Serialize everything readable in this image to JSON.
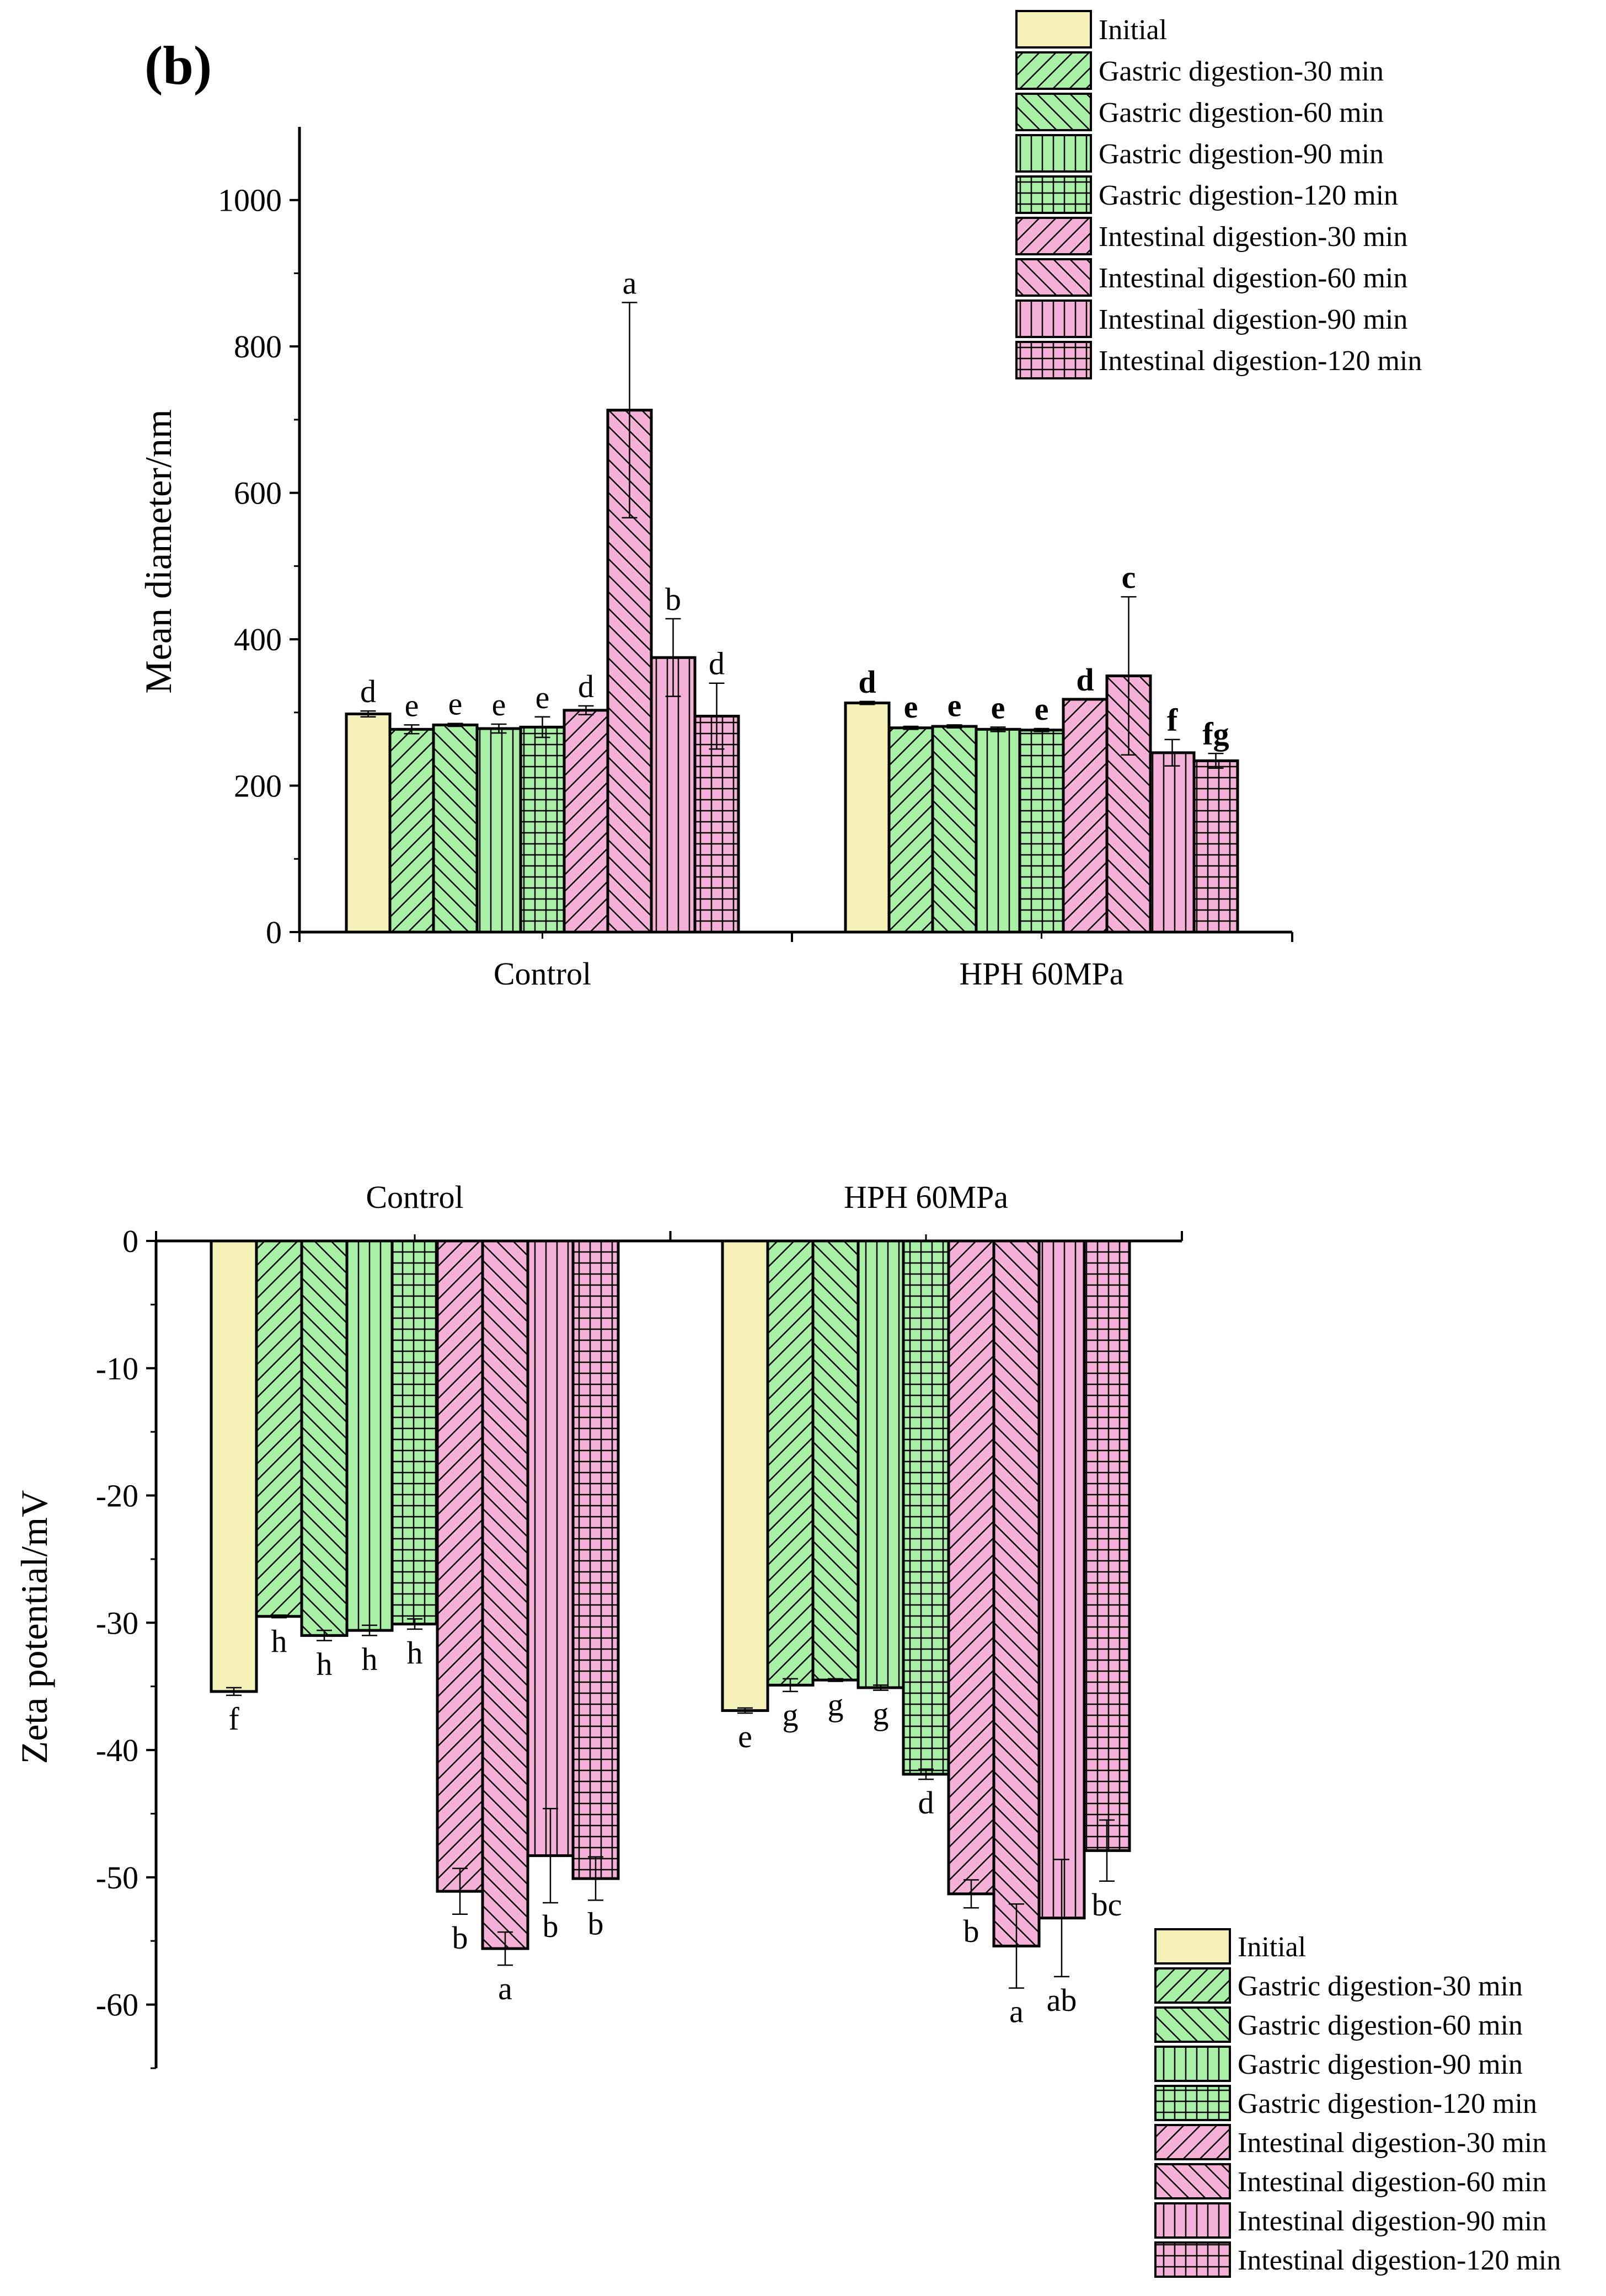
{
  "panel_label": "(b)",
  "colors": {
    "initial": "#f5f0b8",
    "gastric": "#a8f0a6",
    "intestinal": "#f5b0d8",
    "edge": "#000000"
  },
  "legend": {
    "items": [
      {
        "label": "Initial",
        "pattern": "none",
        "group": "initial"
      },
      {
        "label": "Gastric digestion-30 min",
        "pattern": "fdiag",
        "group": "gastric"
      },
      {
        "label": "Gastric digestion-60 min",
        "pattern": "bdiag",
        "group": "gastric"
      },
      {
        "label": "Gastric digestion-90 min",
        "pattern": "vert",
        "group": "gastric"
      },
      {
        "label": "Gastric digestion-120 min",
        "pattern": "grid",
        "group": "gastric"
      },
      {
        "label": "Intestinal digestion-30 min",
        "pattern": "fdiag",
        "group": "intestinal"
      },
      {
        "label": "Intestinal digestion-60 min",
        "pattern": "bdiag",
        "group": "intestinal"
      },
      {
        "label": "Intestinal digestion-90 min",
        "pattern": "vert",
        "group": "intestinal"
      },
      {
        "label": "Intestinal digestion-120 min",
        "pattern": "grid",
        "group": "intestinal"
      }
    ]
  },
  "chart_data": [
    {
      "type": "bar",
      "title": "",
      "ylabel": "Mean diameter/nm",
      "xlabel": "",
      "ylim": [
        0,
        1100
      ],
      "yticks": [
        0,
        200,
        400,
        600,
        800,
        1000
      ],
      "ytick_labels": [
        "0",
        "200",
        "400",
        "600",
        "800",
        "1000"
      ],
      "categories": [
        "Control",
        "HPH 60MPa"
      ],
      "legend_position": "top-right",
      "series_labels": [
        "Initial",
        "Gastric digestion-30 min",
        "Gastric digestion-60 min",
        "Gastric digestion-90 min",
        "Gastric digestion-120 min",
        "Intestinal digestion-30 min",
        "Intestinal digestion-60 min",
        "Intestinal digestion-90 min",
        "Intestinal digestion-120 min"
      ],
      "values": [
        [
          298,
          277,
          283,
          278,
          280,
          303,
          713,
          375,
          295
        ],
        [
          313,
          279,
          281,
          277,
          276,
          318,
          350,
          245,
          234
        ]
      ],
      "errors": [
        [
          4,
          6,
          2,
          6,
          14,
          6,
          147,
          53,
          45
        ],
        [
          2,
          2,
          2,
          3,
          2,
          0,
          108,
          18,
          10
        ]
      ],
      "letters": [
        [
          "d",
          "e",
          "e",
          "e",
          "e",
          "d",
          "a",
          "b",
          "d"
        ],
        [
          "d",
          "e",
          "e",
          "e",
          "e",
          "d",
          "c",
          "f",
          "fg"
        ]
      ],
      "letters_bold": [
        false,
        true
      ]
    },
    {
      "type": "bar",
      "title": "",
      "ylabel": "Zeta potential/mV",
      "xlabel": "",
      "ylim": [
        -65,
        0
      ],
      "yticks": [
        0,
        -10,
        -20,
        -30,
        -40,
        -50,
        -60
      ],
      "ytick_labels": [
        "0",
        "-10",
        "-20",
        "-30",
        "-40",
        "-50",
        "-60"
      ],
      "categories": [
        "Control",
        "HPH 60MPa"
      ],
      "x_axis_position": "top",
      "legend_position": "bottom-right",
      "series_labels": [
        "Initial",
        "Gastric digestion-30 min",
        "Gastric digestion-60 min",
        "Gastric digestion-90 min",
        "Gastric digestion-120 min",
        "Intestinal digestion-30 min",
        "Intestinal digestion-60 min",
        "Intestinal digestion-90 min",
        "Intestinal digestion-120 min"
      ],
      "values": [
        [
          -35.4,
          -29.5,
          -31.0,
          -30.6,
          -30.1,
          -51.1,
          -55.6,
          -48.3,
          -50.1
        ],
        [
          -36.9,
          -34.9,
          -34.5,
          -35.1,
          -41.9,
          -51.3,
          -55.4,
          -53.2,
          -47.9
        ]
      ],
      "errors": [
        [
          0.3,
          0.1,
          0.4,
          0.4,
          0.4,
          1.8,
          1.3,
          3.7,
          1.7
        ],
        [
          0.2,
          0.5,
          0.1,
          0.2,
          0.4,
          1.1,
          3.3,
          4.6,
          2.4
        ]
      ],
      "letters": [
        [
          "f",
          "h",
          "h",
          "h",
          "h",
          "b",
          "a",
          "b",
          "b"
        ],
        [
          "e",
          "g",
          "g",
          "g",
          "d",
          "b",
          "a",
          "ab",
          "bc"
        ]
      ],
      "letters_bold": [
        false,
        false
      ]
    }
  ]
}
